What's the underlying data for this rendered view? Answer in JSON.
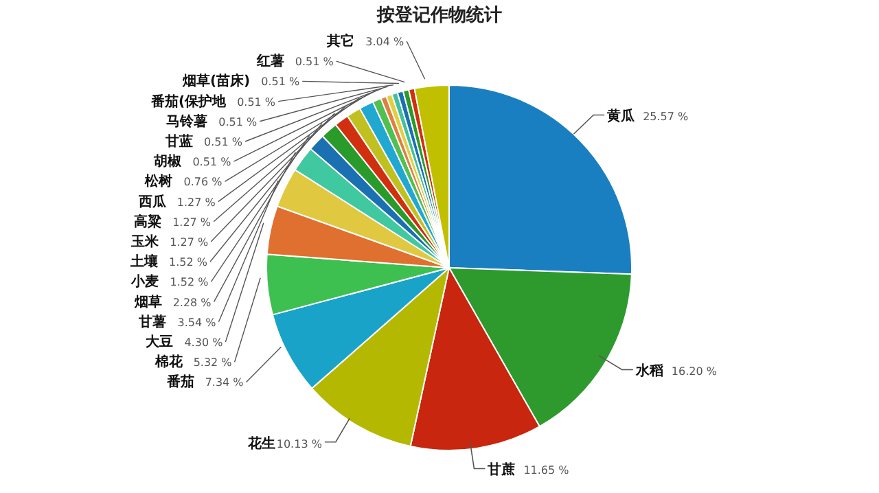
{
  "chart_data": {
    "type": "pie",
    "title": "按登记作物统计",
    "categories": [
      "黄瓜",
      "水稻",
      "甘蔗",
      "花生",
      "番茄",
      "棉花",
      "大豆",
      "甘薯",
      "烟草",
      "小麦",
      "土壤",
      "玉米",
      "高粱",
      "西瓜",
      "松树",
      "胡椒",
      "甘蓝",
      "马铃薯",
      "番茄(保护地",
      "烟草(苗床)",
      "红薯",
      "其它"
    ],
    "values": [
      25.57,
      16.2,
      11.65,
      10.13,
      7.34,
      5.32,
      4.3,
      3.54,
      2.28,
      1.52,
      1.52,
      1.27,
      1.27,
      1.27,
      0.76,
      0.51,
      0.51,
      0.51,
      0.51,
      0.51,
      0.51,
      3.04
    ],
    "colors": [
      "#1a7fc0",
      "#2e9a2e",
      "#c8260e",
      "#b5b800",
      "#1aa3c8",
      "#3ec050",
      "#e07030",
      "#e0c840",
      "#40c8a0",
      "#1a70b0",
      "#2a9a2a",
      "#d03010",
      "#c0c020",
      "#20a8d0",
      "#50c050",
      "#e08040",
      "#e0d040",
      "#40c0a0",
      "#1a70b0",
      "#2a9a2a",
      "#d03010",
      "#c0c000"
    ],
    "value_labels": [
      "25.57 %",
      "16.20 %",
      "11.65 %",
      "10.13 %",
      "7.34 %",
      "5.32 %",
      "4.30 %",
      "3.54 %",
      "2.28 %",
      "1.52 %",
      "1.52 %",
      "1.27 %",
      "1.27 %",
      "1.27 %",
      "0.76 %",
      "0.51 %",
      "0.51 %",
      "0.51 %",
      "0.51 %",
      "0.51 %",
      "0.51 %",
      "3.04 %"
    ]
  }
}
